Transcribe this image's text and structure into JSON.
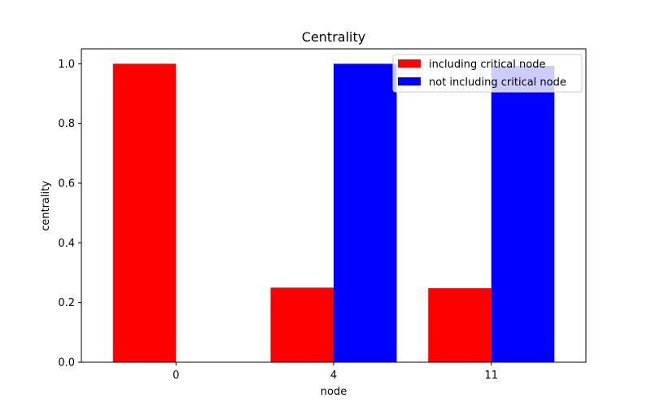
{
  "chart_data": {
    "type": "bar",
    "title": "Centrality",
    "xlabel": "node",
    "ylabel": "centrality",
    "categories": [
      "0",
      "4",
      "11"
    ],
    "series": [
      {
        "name": "including critical node",
        "color": "#ff0000",
        "values": [
          1.0,
          0.25,
          0.248
        ]
      },
      {
        "name": "not including critical node",
        "color": "#0000ff",
        "values": [
          0.0,
          1.0,
          0.993
        ]
      }
    ],
    "ylim": [
      0,
      1.05
    ],
    "yticks": [
      "0.0",
      "0.2",
      "0.4",
      "0.6",
      "0.8",
      "1.0"
    ],
    "grid": false,
    "legend_position": "top-right"
  }
}
